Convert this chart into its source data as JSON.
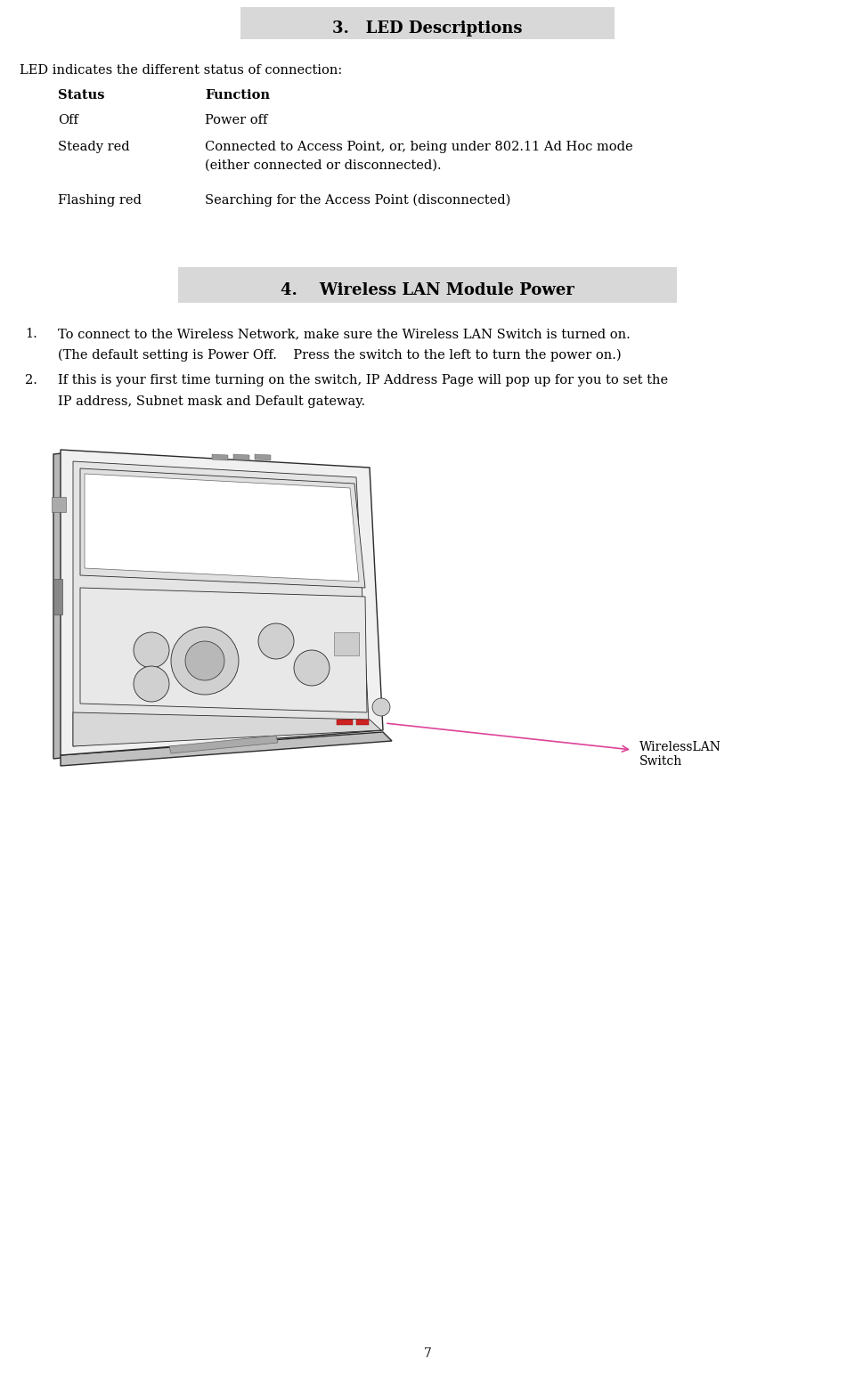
{
  "bg_color": "#ffffff",
  "page_width": 9.6,
  "page_height": 15.44,
  "section1_title": "3.   LED Descriptions",
  "section1_title_bg": "#d8d8d8",
  "section2_title": "4.    Wireless LAN Module Power",
  "section2_title_bg": "#d8d8d8",
  "intro_text": "LED indicates the different status of connection:",
  "col1_header": "Status",
  "col2_header": "Function",
  "rows": [
    {
      "status": "Off",
      "function": "Power off"
    },
    {
      "status": "Steady red",
      "function": "Connected to Access Point, or, being under 802.11 Ad Hoc mode\n(either connected or disconnected)."
    },
    {
      "status": "Flashing red",
      "function": "Searching for the Access Point (disconnected)"
    }
  ],
  "list_item1_text": "To connect to the Wireless Network, make sure the Wireless LAN Switch is turned on.",
  "list_item1_sub": "(The default setting is Power Off.    Press the switch to the left to turn the power on.)",
  "list_item2_text": "If this is your first time turning on the switch, IP Address Page will pop up for you to set the",
  "list_item2_sub": "IP address, Subnet mask and Default gateway.",
  "label_text": "WirelessLAN\nSwitch",
  "page_num": "7",
  "font_family": "DejaVu Serif",
  "title_fontsize": 13,
  "body_fontsize": 10.5,
  "header_fontsize": 10.5
}
